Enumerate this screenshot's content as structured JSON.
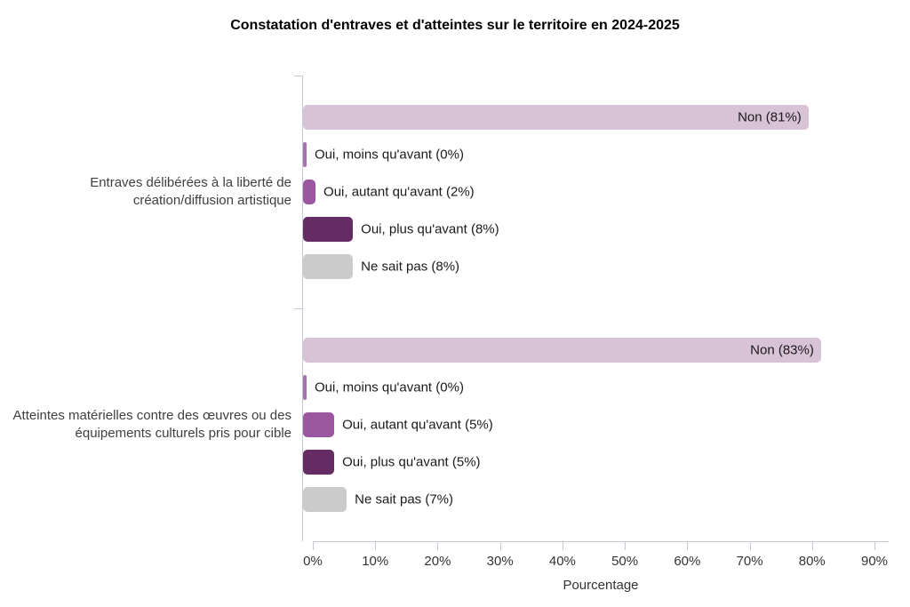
{
  "chart_data": {
    "type": "bar",
    "orientation": "horizontal",
    "title": "Constatation d'entraves et d'atteintes sur le territoire en 2024-2025",
    "xlabel": "Pourcentage",
    "xlim": [
      0,
      90
    ],
    "xticks": [
      {
        "value": 0,
        "label": "0%"
      },
      {
        "value": 10,
        "label": "10%"
      },
      {
        "value": 20,
        "label": "20%"
      },
      {
        "value": 30,
        "label": "30%"
      },
      {
        "value": 40,
        "label": "40%"
      },
      {
        "value": 50,
        "label": "50%"
      },
      {
        "value": 60,
        "label": "60%"
      },
      {
        "value": 70,
        "label": "70%"
      },
      {
        "value": 80,
        "label": "80%"
      },
      {
        "value": 90,
        "label": "90%"
      }
    ],
    "grid": false,
    "legend": "none",
    "colors": {
      "non": "#d8c3d6",
      "moins": "#a873ab",
      "autant": "#9a57a0",
      "plus": "#642c62",
      "ne_sait_pas": "#cbcbcb"
    },
    "groups": [
      {
        "category": "Entraves délibérées à la liberté de création/diffusion artistique",
        "bars": [
          {
            "label": "Non (81%)",
            "value": 81,
            "color_key": "non",
            "label_inside": true
          },
          {
            "label": "Oui, moins qu'avant (0%)",
            "value": 0,
            "color_key": "moins",
            "label_inside": false
          },
          {
            "label": "Oui, autant qu'avant (2%)",
            "value": 2,
            "color_key": "autant",
            "label_inside": false
          },
          {
            "label": "Oui, plus qu'avant (8%)",
            "value": 8,
            "color_key": "plus",
            "label_inside": false
          },
          {
            "label": "Ne sait pas (8%)",
            "value": 8,
            "color_key": "ne_sait_pas",
            "label_inside": false
          }
        ]
      },
      {
        "category": "Atteintes matérielles contre des œuvres ou des équipements culturels pris pour cible",
        "bars": [
          {
            "label": "Non (83%)",
            "value": 83,
            "color_key": "non",
            "label_inside": true
          },
          {
            "label": "Oui, moins qu'avant (0%)",
            "value": 0,
            "color_key": "moins",
            "label_inside": false
          },
          {
            "label": "Oui, autant qu'avant (5%)",
            "value": 5,
            "color_key": "autant",
            "label_inside": false
          },
          {
            "label": "Oui, plus qu'avant (5%)",
            "value": 5,
            "color_key": "plus",
            "label_inside": false
          },
          {
            "label": "Ne sait pas (7%)",
            "value": 7,
            "color_key": "ne_sait_pas",
            "label_inside": false
          }
        ]
      }
    ]
  }
}
